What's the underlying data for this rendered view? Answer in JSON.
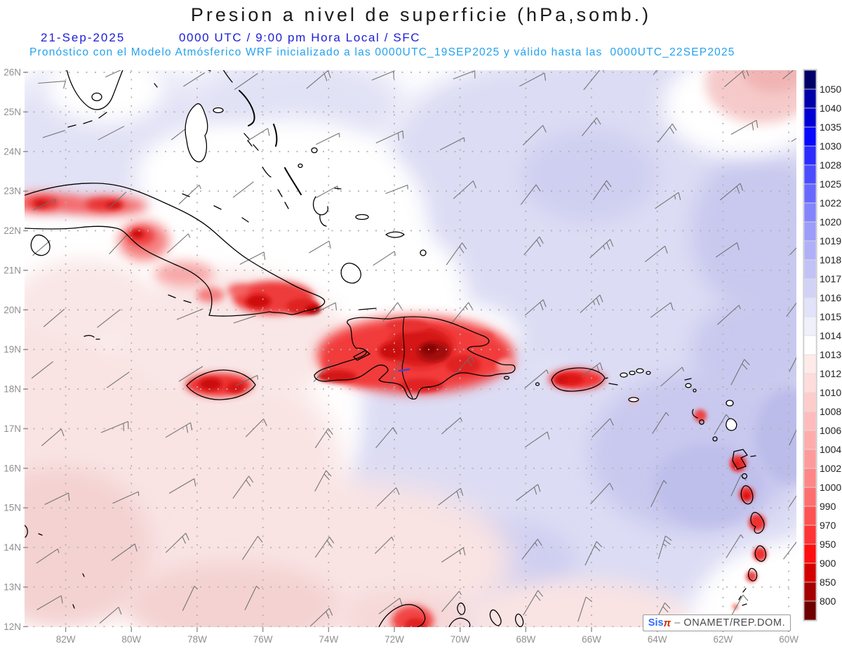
{
  "header": {
    "title": "Presion a nivel de superficie (hPa,somb.)",
    "date": "21-Sep-2025",
    "time_info": "0000 UTC / 9:00 pm Hora Local / SFC",
    "forecast_info": "Pronóstico con el Modelo Atmósferico WRF inicializado a las 0000UTC_19SEP2025 y válido hasta las  0000UTC_22SEP2025",
    "colors": {
      "title": "#1a1a1a",
      "date_line": "#1c1cd8",
      "forecast_line": "#22a2ee"
    }
  },
  "map": {
    "lat_ticks": [
      "26N",
      "25N",
      "24N",
      "23N",
      "22N",
      "21N",
      "20N",
      "19N",
      "18N",
      "17N",
      "16N",
      "15N",
      "14N",
      "13N",
      "12N"
    ],
    "lon_ticks": [
      "82W",
      "80W",
      "78W",
      "76W",
      "74W",
      "72W",
      "70W",
      "68W",
      "66W",
      "64W",
      "62W",
      "60W"
    ],
    "axis_label_color": "#8f8f8f",
    "grid_color": "#b0b0b0",
    "coastline_color": "#000000",
    "wind_barbs": {
      "color": "#6e6e6e",
      "cols": 12,
      "rows": 10
    }
  },
  "colorbar": {
    "unit": "hPa",
    "tick_labels": [
      "1050",
      "1040",
      "1035",
      "1030",
      "1028",
      "1025",
      "1022",
      "1020",
      "1019",
      "1018",
      "1017",
      "1016",
      "1015",
      "1014",
      "1013",
      "1012",
      "1010",
      "1008",
      "1006",
      "1004",
      "1002",
      "1000",
      "990",
      "970",
      "950",
      "900",
      "850",
      "800"
    ],
    "cell_colors": [
      "#000066",
      "#0000aa",
      "#0000d4",
      "#0808ff",
      "#2c2cff",
      "#4c4cff",
      "#6868ff",
      "#8484fc",
      "#9c9cfa",
      "#b0b0f8",
      "#c2c2f6",
      "#d2d2f6",
      "#e2e2fa",
      "#f0f0fc",
      "#ffffff",
      "#ffeaea",
      "#ffdcdc",
      "#ffcccc",
      "#ffbcbc",
      "#ffacac",
      "#ff9a9a",
      "#ff8686",
      "#ff6e6e",
      "#ff5252",
      "#ff3434",
      "#ff0e0e",
      "#d40000",
      "#a40000",
      "#6e0000"
    ],
    "label_color": "#222222"
  },
  "branding": {
    "prefix": "Sis",
    "pi": "π",
    "separator": "–",
    "org": "ONAMET/REP.DOM.",
    "prefix_color": "#2f6bff",
    "pi_color": "#cc3300",
    "org_color": "#4a4a4a"
  },
  "chart_data": {
    "type": "heatmap",
    "title": "Presion a nivel de superficie (hPa,somb.)",
    "units": "hPa",
    "x_ticks_lon_w": [
      82,
      80,
      78,
      76,
      74,
      72,
      70,
      68,
      66,
      64,
      62,
      60
    ],
    "y_ticks_lat_n": [
      26,
      25,
      24,
      23,
      22,
      21,
      20,
      19,
      18,
      17,
      16,
      15,
      14,
      13,
      12
    ],
    "colorbar_levels_hpa": [
      800,
      850,
      900,
      950,
      970,
      990,
      1000,
      1002,
      1004,
      1006,
      1008,
      1010,
      1012,
      1013,
      1014,
      1015,
      1016,
      1017,
      1018,
      1019,
      1020,
      1022,
      1025,
      1028,
      1030,
      1035,
      1040,
      1050
    ],
    "shading_readings": [
      {
        "area": "Cuba, Hispaniola, Jamaica, Puerto Rico, Lesser Antilles interiors",
        "value_hpa": "≤1008 (red, terrain-reduced pressure)"
      },
      {
        "area": "northeast / east Atlantic quadrant",
        "value_hpa": "1015–1018 (lavender-blue)"
      },
      {
        "area": "southwest Caribbean",
        "value_hpa": "1012–1013 (pale pink)"
      },
      {
        "area": "central diagonal band",
        "value_hpa": "1013–1015 (white)"
      }
    ]
  }
}
